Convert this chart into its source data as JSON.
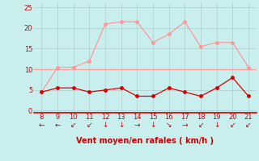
{
  "x": [
    8,
    9,
    10,
    11,
    12,
    13,
    14,
    15,
    16,
    17,
    18,
    19,
    20,
    21
  ],
  "rafales": [
    4.5,
    10.5,
    10.5,
    12.0,
    21.0,
    21.5,
    21.5,
    16.5,
    18.5,
    21.5,
    15.5,
    16.5,
    16.5,
    10.5
  ],
  "vent_moyen": [
    4.5,
    5.5,
    5.5,
    4.5,
    5.0,
    5.5,
    3.5,
    3.5,
    5.5,
    4.5,
    3.5,
    5.5,
    8.0,
    3.5
  ],
  "ligne_ref": 10.0,
  "bg_color": "#c8eeee",
  "grid_color": "#b0cccc",
  "line_rafales_color": "#ff9999",
  "line_ref_color": "#ff9999",
  "line_vent_color": "#dd0000",
  "xlabel": "Vent moyen/en rafales ( km/h )",
  "ylim": [
    -0.5,
    26
  ],
  "xlim": [
    7.5,
    21.5
  ],
  "yticks": [
    0,
    5,
    10,
    15,
    20,
    25
  ],
  "xticks": [
    8,
    9,
    10,
    11,
    12,
    13,
    14,
    15,
    16,
    17,
    18,
    19,
    20,
    21
  ],
  "arrows": [
    {
      "x": 8,
      "symbol": "←"
    },
    {
      "x": 9,
      "symbol": "←"
    },
    {
      "x": 10,
      "symbol": "↙"
    },
    {
      "x": 11,
      "symbol": "↙"
    },
    {
      "x": 12,
      "symbol": "↓"
    },
    {
      "x": 13,
      "symbol": "↓"
    },
    {
      "x": 14,
      "symbol": "→"
    },
    {
      "x": 15,
      "symbol": "↓"
    },
    {
      "x": 16,
      "symbol": "↘"
    },
    {
      "x": 17,
      "symbol": "→"
    },
    {
      "x": 18,
      "symbol": "↙"
    },
    {
      "x": 19,
      "symbol": "↓"
    },
    {
      "x": 20,
      "symbol": "↙"
    },
    {
      "x": 21,
      "symbol": "↙"
    }
  ]
}
